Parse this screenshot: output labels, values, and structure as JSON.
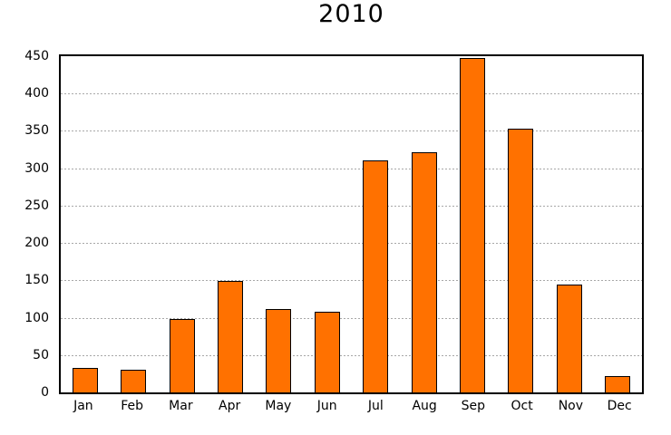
{
  "chart_data": {
    "type": "bar",
    "title": "2010",
    "categories": [
      "Jan",
      "Feb",
      "Mar",
      "Apr",
      "May",
      "Jun",
      "Jul",
      "Aug",
      "Sep",
      "Oct",
      "Nov",
      "Dec"
    ],
    "values": [
      33,
      30,
      98,
      149,
      112,
      108,
      311,
      321,
      448,
      353,
      144,
      22
    ],
    "xlabel": "",
    "ylabel": "",
    "ylim": [
      0,
      450
    ],
    "ytick_step": 50,
    "ytick_labels": [
      "0",
      "50",
      "100",
      "150",
      "200",
      "250",
      "300",
      "350",
      "400",
      "450"
    ],
    "grid": "horizontal-dotted",
    "legend_position": "none",
    "colors": {
      "bar_fill": "#ff7100",
      "bar_border": "#000000",
      "grid_line": "#a8a8a8",
      "axis_box": "#000000",
      "text": "#000000",
      "background": "#ffffff"
    }
  }
}
